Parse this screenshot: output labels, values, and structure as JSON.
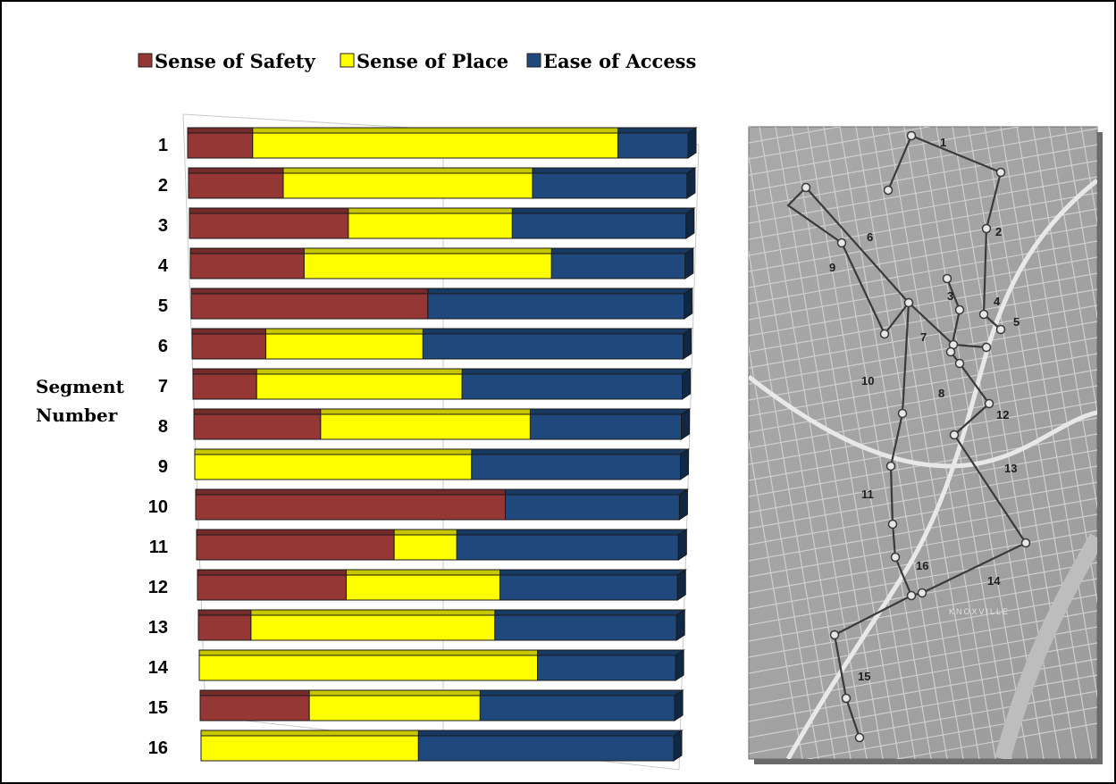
{
  "chart_data": {
    "type": "bar",
    "stacked": true,
    "orientation": "horizontal",
    "style": "3d",
    "ylabel": "Segment Number",
    "xlabel": "",
    "title": "",
    "xlim": [
      0,
      100
    ],
    "grid": true,
    "legend_position": "top",
    "categories": [
      "1",
      "2",
      "3",
      "4",
      "5",
      "6",
      "7",
      "8",
      "9",
      "10",
      "11",
      "12",
      "13",
      "14",
      "15",
      "16"
    ],
    "series": [
      {
        "name": "Sense of Safety",
        "color": "#953735",
        "values": [
          13,
          19,
          32,
          23,
          48,
          15,
          13,
          26,
          0,
          64,
          41,
          31,
          11,
          0,
          23,
          0
        ]
      },
      {
        "name": "Sense of Place",
        "color": "#ffff00",
        "values": [
          73,
          50,
          33,
          50,
          0,
          32,
          42,
          43,
          57,
          0,
          13,
          32,
          51,
          71,
          36,
          46
        ]
      },
      {
        "name": "Ease of Access",
        "color": "#1f497d",
        "values": [
          14,
          31,
          35,
          27,
          52,
          53,
          45,
          31,
          43,
          36,
          46,
          37,
          38,
          29,
          41,
          54
        ]
      }
    ]
  },
  "map": {
    "segment_labels": [
      "1",
      "2",
      "3",
      "4",
      "5",
      "6",
      "7",
      "8",
      "9",
      "10",
      "11",
      "12",
      "13",
      "14",
      "15",
      "16"
    ],
    "place_label": "KNOXVILLE"
  }
}
